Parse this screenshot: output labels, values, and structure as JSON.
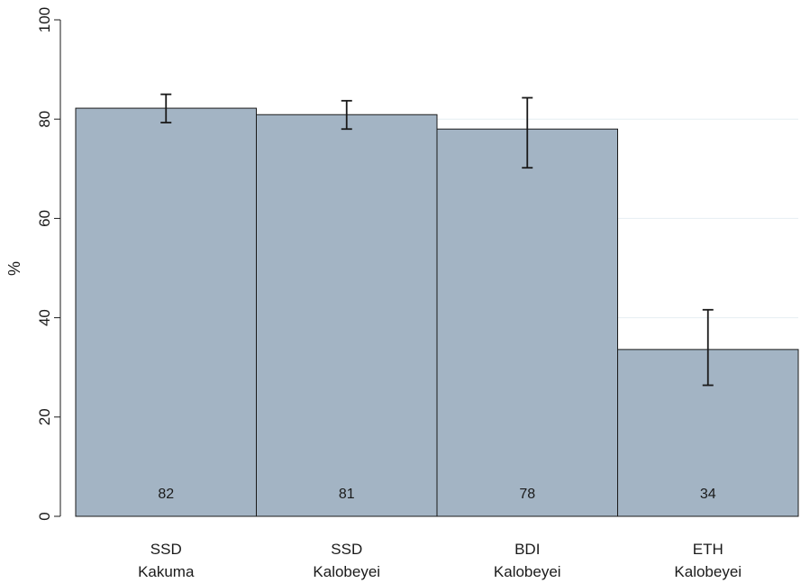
{
  "chart_data": {
    "type": "bar",
    "title": "",
    "xlabel": "",
    "ylabel": "%",
    "ylim": [
      0,
      100
    ],
    "yticks": [
      0,
      20,
      40,
      60,
      80,
      100
    ],
    "grid": true,
    "categories": [
      {
        "line1": "SSD",
        "line2": "Kakuma"
      },
      {
        "line1": "SSD",
        "line2": "Kalobeyei"
      },
      {
        "line1": "BDI",
        "line2": "Kalobeyei"
      },
      {
        "line1": "ETH",
        "line2": "Kalobeyei"
      }
    ],
    "values": [
      82.2,
      80.9,
      78.0,
      33.6
    ],
    "value_labels": [
      "82",
      "81",
      "78",
      "34"
    ],
    "error_bars": [
      {
        "low": 79.3,
        "high": 85.0
      },
      {
        "low": 78.0,
        "high": 83.7
      },
      {
        "low": 70.2,
        "high": 84.3
      },
      {
        "low": 26.4,
        "high": 41.6
      }
    ],
    "colors": {
      "bar_fill": "#a3b4c4",
      "bar_stroke": "#1a1a1a",
      "grid": "#e6eef2",
      "axis": "#1a1a1a"
    }
  }
}
